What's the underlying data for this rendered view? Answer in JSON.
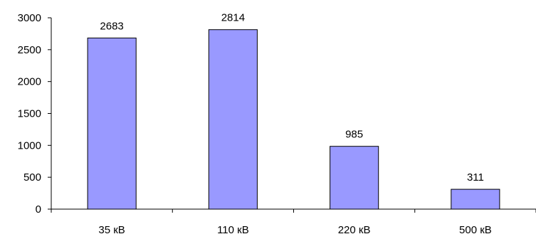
{
  "chart_data": {
    "type": "bar",
    "categories": [
      "35 кВ",
      "110 кВ",
      "220 кВ",
      "500 кВ"
    ],
    "values": [
      2683,
      2814,
      985,
      311
    ],
    "data_labels": [
      "2683",
      "2814",
      "985",
      "311"
    ],
    "yticks": [
      0,
      500,
      1000,
      1500,
      2000,
      2500,
      3000
    ],
    "ylim": [
      0,
      3000
    ],
    "title": "",
    "xlabel": "",
    "ylabel": "",
    "grid": false,
    "legend": "none",
    "colors": {
      "bar_fill": "#9999ff",
      "bar_stroke": "#000000",
      "axis": "#000000",
      "text": "#000000",
      "background": "#ffffff"
    }
  }
}
